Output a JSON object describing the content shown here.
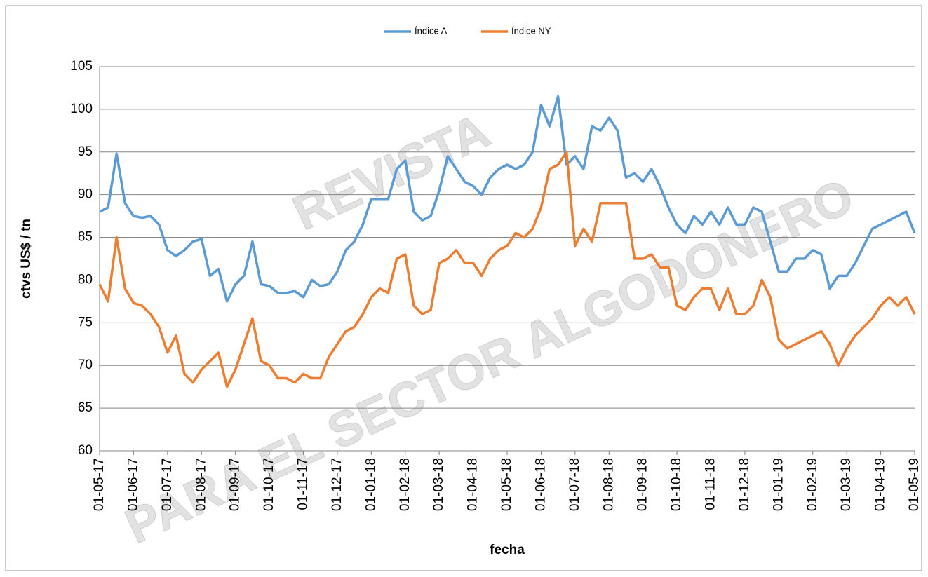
{
  "chart_data": {
    "type": "line",
    "watermark": [
      "REVISTA",
      "PARA EL SECTOR ALGODONERO"
    ],
    "x_label": "fecha",
    "y_label": "ctvs US$ / tn",
    "categories": [
      "01-05-17",
      null,
      null,
      null,
      "01-06-17",
      null,
      null,
      null,
      "01-07-17",
      null,
      null,
      null,
      "01-08-17",
      null,
      null,
      null,
      "01-09-17",
      null,
      null,
      null,
      "01-10-17",
      null,
      null,
      null,
      "01-11-17",
      null,
      null,
      null,
      "01-12-17",
      null,
      null,
      null,
      "01-01-18",
      null,
      null,
      null,
      "01-02-18",
      null,
      null,
      null,
      "01-03-18",
      null,
      null,
      null,
      "01-04-18",
      null,
      null,
      null,
      "01-05-18",
      null,
      null,
      null,
      "01-06-18",
      null,
      null,
      null,
      "01-07-18",
      null,
      null,
      null,
      "01-08-18",
      null,
      null,
      null,
      "01-09-18",
      null,
      null,
      null,
      "01-10-18",
      null,
      null,
      null,
      "01-11-18",
      null,
      null,
      null,
      "01-12-18",
      null,
      null,
      null,
      "01-01-19",
      null,
      null,
      null,
      "01-02-19",
      null,
      null,
      null,
      "01-03-19",
      null,
      null,
      null,
      "01-04-19",
      null,
      null,
      null,
      "01-05-19"
    ],
    "series": [
      {
        "name": "Índice A",
        "color": "#5b9bd5",
        "values": [
          88,
          88.5,
          94.8,
          89,
          87.5,
          87.3,
          87.5,
          86.5,
          83.5,
          82.8,
          83.5,
          84.5,
          84.8,
          80.5,
          81.3,
          77.5,
          79.5,
          80.5,
          84.5,
          79.5,
          79.3,
          78.5,
          78.5,
          78.7,
          78,
          80,
          79.3,
          79.5,
          81,
          83.5,
          84.5,
          86.5,
          89.5,
          89.5,
          89.5,
          93,
          94,
          88,
          87,
          87.5,
          90.5,
          94.5,
          93,
          91.5,
          91,
          90,
          92,
          93,
          93.5,
          93,
          93.5,
          95,
          100.5,
          98,
          101.5,
          93.5,
          94.5,
          93,
          98,
          97.5,
          99,
          97.5,
          92,
          92.5,
          91.5,
          93,
          91,
          88.5,
          86.5,
          85.5,
          87.5,
          86.5,
          88,
          86.5,
          88.5,
          86.5,
          86.5,
          88.5,
          88,
          84.5,
          81,
          81,
          82.5,
          82.5,
          83.5,
          83,
          79,
          80.5,
          80.5,
          82,
          84,
          86,
          86.5,
          87,
          87.5,
          88,
          85.5
        ]
      },
      {
        "name": "Índice NY",
        "color": "#ed7d31",
        "values": [
          79.5,
          77.5,
          85,
          79,
          77.3,
          77,
          76,
          74.5,
          71.5,
          73.5,
          69,
          68,
          69.5,
          70.5,
          71.5,
          67.5,
          69.5,
          72.5,
          75.5,
          70.5,
          70,
          68.5,
          68.5,
          68,
          69,
          68.5,
          68.5,
          71,
          72.5,
          74,
          74.5,
          76,
          78,
          79,
          78.5,
          82.5,
          83,
          77,
          76,
          76.5,
          82,
          82.5,
          83.5,
          82,
          82,
          80.5,
          82.5,
          83.5,
          84,
          85.5,
          85,
          86,
          88.5,
          93,
          93.5,
          95,
          84,
          86,
          84.5,
          89,
          89,
          89,
          89,
          82.5,
          82.5,
          83,
          81.5,
          81.5,
          77,
          76.5,
          78,
          79,
          79,
          76.5,
          79,
          76,
          76,
          77,
          80,
          78,
          73,
          72,
          72.5,
          73,
          73.5,
          74,
          72.5,
          70,
          72,
          73.5,
          74.5,
          75.5,
          77,
          78,
          77,
          78,
          76
        ]
      }
    ],
    "ylim": [
      60,
      105
    ],
    "yticks": [
      60,
      65,
      70,
      75,
      80,
      85,
      90,
      95,
      100,
      105
    ],
    "grid": true,
    "legend": "top"
  }
}
